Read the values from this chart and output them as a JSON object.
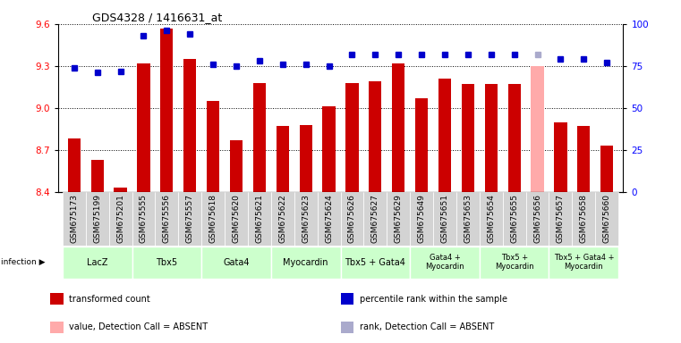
{
  "title": "GDS4328 / 1416631_at",
  "samples": [
    "GSM675173",
    "GSM675199",
    "GSM675201",
    "GSM675555",
    "GSM675556",
    "GSM675557",
    "GSM675618",
    "GSM675620",
    "GSM675621",
    "GSM675622",
    "GSM675623",
    "GSM675624",
    "GSM675626",
    "GSM675627",
    "GSM675629",
    "GSM675649",
    "GSM675651",
    "GSM675653",
    "GSM675654",
    "GSM675655",
    "GSM675656",
    "GSM675657",
    "GSM675658",
    "GSM675660"
  ],
  "bar_values": [
    8.78,
    8.63,
    8.43,
    9.32,
    9.57,
    9.35,
    9.05,
    8.77,
    9.18,
    8.87,
    8.88,
    9.01,
    9.18,
    9.19,
    9.32,
    9.07,
    9.21,
    9.17,
    9.17,
    9.17,
    9.3,
    8.9,
    8.87,
    8.73
  ],
  "bar_absent": [
    false,
    false,
    false,
    false,
    false,
    false,
    false,
    false,
    false,
    false,
    false,
    false,
    false,
    false,
    false,
    false,
    false,
    false,
    false,
    false,
    true,
    false,
    false,
    false
  ],
  "percentile_values": [
    74,
    71,
    72,
    93,
    96,
    94,
    76,
    75,
    78,
    76,
    76,
    75,
    82,
    82,
    82,
    82,
    82,
    82,
    82,
    82,
    82,
    79,
    79,
    77
  ],
  "percentile_absent": [
    false,
    false,
    false,
    false,
    false,
    false,
    false,
    false,
    false,
    false,
    false,
    false,
    false,
    false,
    false,
    false,
    false,
    false,
    false,
    false,
    true,
    false,
    false,
    false
  ],
  "ylim_left": [
    8.4,
    9.6
  ],
  "ylim_right": [
    0,
    100
  ],
  "yticks_left": [
    8.4,
    8.7,
    9.0,
    9.3,
    9.6
  ],
  "yticks_right": [
    0,
    25,
    50,
    75,
    100
  ],
  "bar_color": "#cc0000",
  "bar_absent_color": "#ffaaaa",
  "dot_color": "#0000cc",
  "dot_absent_color": "#aaaacc",
  "groups": [
    {
      "label": "LacZ",
      "start": 0,
      "end": 2
    },
    {
      "label": "Tbx5",
      "start": 3,
      "end": 5
    },
    {
      "label": "Gata4",
      "start": 6,
      "end": 8
    },
    {
      "label": "Myocardin",
      "start": 9,
      "end": 11
    },
    {
      "label": "Tbx5 + Gata4",
      "start": 12,
      "end": 14
    },
    {
      "label": "Gata4 +\nMyocardin",
      "start": 15,
      "end": 17
    },
    {
      "label": "Tbx5 +\nMyocardin",
      "start": 18,
      "end": 20
    },
    {
      "label": "Tbx5 + Gata4 +\nMyocardin",
      "start": 21,
      "end": 23
    }
  ],
  "group_bg_color": "#ccffcc",
  "sample_bg_color": "#d3d3d3",
  "legend_items": [
    {
      "color": "#cc0000",
      "label": "transformed count",
      "col": 0
    },
    {
      "color": "#ffaaaa",
      "label": "value, Detection Call = ABSENT",
      "col": 0
    },
    {
      "color": "#0000cc",
      "label": "percentile rank within the sample",
      "col": 1
    },
    {
      "color": "#aaaacc",
      "label": "rank, Detection Call = ABSENT",
      "col": 1
    }
  ]
}
